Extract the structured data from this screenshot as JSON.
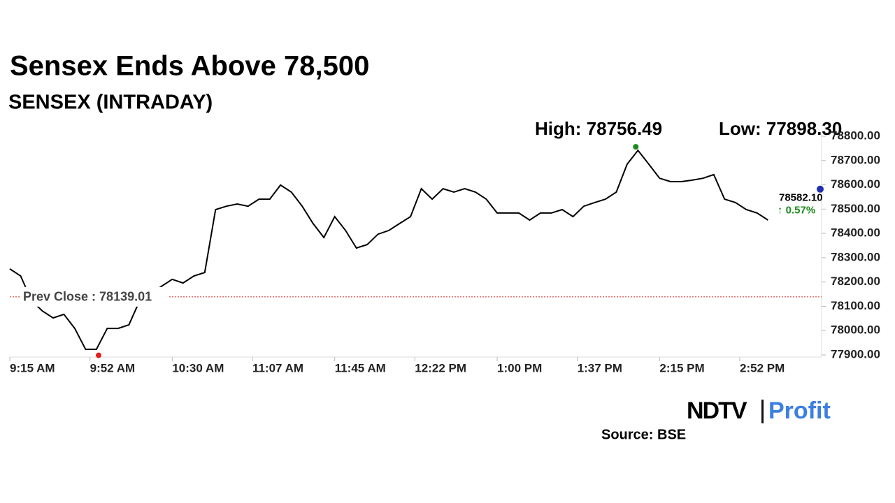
{
  "chart_data": {
    "type": "line",
    "title": "Sensex Ends Above 78,500",
    "subtitle": "SENSEX (INTRADAY)",
    "source": "Source: BSE",
    "x": [
      "9:15 AM",
      "9:20 AM",
      "9:25 AM",
      "9:30 AM",
      "9:35 AM",
      "9:40 AM",
      "9:45 AM",
      "9:50 AM",
      "9:55 AM",
      "10:00 AM",
      "10:05 AM",
      "10:10 AM",
      "10:15 AM",
      "10:20 AM",
      "10:25 AM",
      "10:30 AM",
      "10:35 AM",
      "10:40 AM",
      "10:45 AM",
      "10:50 AM",
      "10:55 AM",
      "11:00 AM",
      "11:05 AM",
      "11:10 AM",
      "11:15 AM",
      "11:20 AM",
      "11:25 AM",
      "11:30 AM",
      "11:35 AM",
      "11:40 AM",
      "11:45 AM",
      "11:50 AM",
      "11:55 AM",
      "12:00 PM",
      "12:05 PM",
      "12:10 PM",
      "12:15 PM",
      "12:20 PM",
      "12:25 PM",
      "12:30 PM",
      "12:35 PM",
      "12:40 PM",
      "12:45 PM",
      "12:50 PM",
      "12:55 PM",
      "1:00 PM",
      "1:05 PM",
      "1:10 PM",
      "1:15 PM",
      "1:20 PM",
      "1:25 PM",
      "1:30 PM",
      "1:35 PM",
      "1:40 PM",
      "1:45 PM",
      "1:50 PM",
      "1:55 PM",
      "2:00 PM",
      "2:05 PM",
      "2:10 PM",
      "2:15 PM",
      "2:20 PM",
      "2:25 PM",
      "2:30 PM",
      "2:35 PM",
      "2:40 PM",
      "2:45 PM",
      "2:50 PM",
      "2:55 PM",
      "3:00 PM",
      "3:05 PM"
    ],
    "series": [
      {
        "name": "SENSEX",
        "color": "#000000",
        "values": [
          78254,
          78225,
          78124,
          78081,
          78052,
          78067,
          78009,
          77923,
          77923,
          78009,
          78009,
          78024,
          78124,
          78153,
          78182,
          78211,
          78196,
          78225,
          78239,
          78498,
          78512,
          78521,
          78512,
          78541,
          78541,
          78599,
          78570,
          78512,
          78441,
          78383,
          78469,
          78412,
          78340,
          78354,
          78397,
          78412,
          78441,
          78469,
          78584,
          78541,
          78584,
          78570,
          78584,
          78570,
          78541,
          78484,
          78484,
          78484,
          78455,
          78484,
          78484,
          78498,
          78469,
          78512,
          78527,
          78541,
          78570,
          78685,
          78742,
          78685,
          78627,
          78613,
          78613,
          78619,
          78627,
          78642,
          78541,
          78527,
          78498,
          78484,
          78455
        ]
      }
    ],
    "xticks": [
      "9:15 AM",
      "9:52 AM",
      "10:30 AM",
      "11:07 AM",
      "11:45 AM",
      "12:22 PM",
      "1:00 PM",
      "1:37 PM",
      "2:15 PM",
      "2:52 PM"
    ],
    "ylim": [
      77900,
      78800
    ],
    "yticks": [
      {
        "value": 77900,
        "label": "77900.00"
      },
      {
        "value": 78000,
        "label": "78000.00"
      },
      {
        "value": 78100,
        "label": "78100.00"
      },
      {
        "value": 78200,
        "label": "78200.00"
      },
      {
        "value": 78300,
        "label": "78300.00"
      },
      {
        "value": 78400,
        "label": "78400.00"
      },
      {
        "value": 78500,
        "label": "78500.00"
      },
      {
        "value": 78600,
        "label": "78600.00"
      },
      {
        "value": 78700,
        "label": "78700.00"
      },
      {
        "value": 78800,
        "label": "78800.00"
      }
    ],
    "prev_close": {
      "label": "Prev Close : 78139.01",
      "value": 78139.01,
      "color": "#d62728"
    },
    "high": {
      "label": "High: 78756.49",
      "value": 78756.49,
      "x": "2:04 PM",
      "color": "#1a8a1a"
    },
    "low": {
      "label": "Low: 77898.30",
      "value": 77898.3,
      "x": "9:56 AM",
      "color": "#e0201a"
    },
    "last": {
      "value": 78582.1,
      "label": "78582.10",
      "change": "↑ 0.57%",
      "change_color": "#1a8a1a",
      "color": "#1f2fb0"
    }
  }
}
